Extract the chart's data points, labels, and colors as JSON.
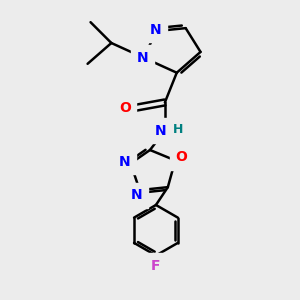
{
  "bg_color": "#ececec",
  "bond_color": "#000000",
  "N_color": "#0000ff",
  "O_color": "#ff0000",
  "F_color": "#cc44cc",
  "H_color": "#008080",
  "line_width": 1.8,
  "figsize": [
    3.0,
    3.0
  ],
  "dpi": 100,
  "xlim": [
    0,
    10
  ],
  "ylim": [
    0,
    10
  ]
}
